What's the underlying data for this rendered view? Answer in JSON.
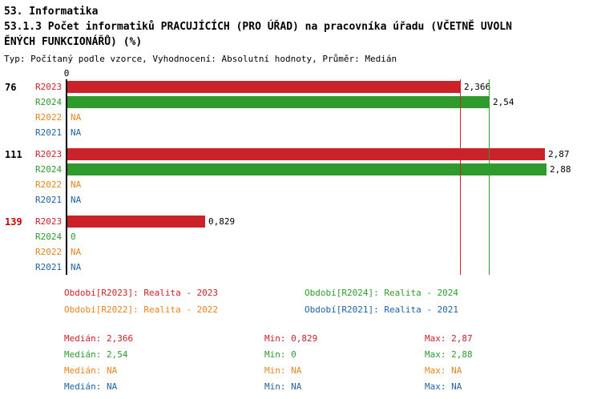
{
  "colors": {
    "R2023": "#cb2128",
    "R2024": "#2e9b2c",
    "R2022": "#e8831d",
    "R2021": "#1e62a5",
    "group_default": "#000000",
    "group_alert": "#cc0000",
    "axis": "#000000",
    "value_label": "#000000",
    "background": "#ffffff"
  },
  "header": {
    "line1": "53. Informatika",
    "line2a": "53.1.3 Počet informatiků PRACUJÍCÍCH (PRO ÚŘAD) na pracovníka úřadu (VČETNĚ UVOLN",
    "line2b": "ĚNÝCH FUNKCIONÁŘŮ) (%)",
    "meta": "Typ: Počítaný podle vzorce, Vyhodnocení: Absolutní hodnoty, Průměr: Medián"
  },
  "chart_data": {
    "type": "bar",
    "orientation": "horizontal",
    "x_origin_label": "0",
    "xlim": [
      0,
      3.2
    ],
    "grid": false,
    "series_order": [
      "R2023",
      "R2024",
      "R2022",
      "R2021"
    ],
    "groups": [
      {
        "label": "76",
        "alert": false,
        "rows": [
          {
            "series": "R2023",
            "value": 2.366,
            "value_label": "2,366"
          },
          {
            "series": "R2024",
            "value": 2.54,
            "value_label": "2,54"
          },
          {
            "series": "R2022",
            "value": null,
            "value_label": "NA"
          },
          {
            "series": "R2021",
            "value": null,
            "value_label": "NA"
          }
        ]
      },
      {
        "label": "111",
        "alert": false,
        "rows": [
          {
            "series": "R2023",
            "value": 2.87,
            "value_label": "2,87"
          },
          {
            "series": "R2024",
            "value": 2.88,
            "value_label": "2,88"
          },
          {
            "series": "R2022",
            "value": null,
            "value_label": "NA"
          },
          {
            "series": "R2021",
            "value": null,
            "value_label": "NA"
          }
        ]
      },
      {
        "label": "139",
        "alert": true,
        "rows": [
          {
            "series": "R2023",
            "value": 0.829,
            "value_label": "0,829"
          },
          {
            "series": "R2024",
            "value": 0,
            "value_label": "0"
          },
          {
            "series": "R2022",
            "value": null,
            "value_label": "NA"
          },
          {
            "series": "R2021",
            "value": null,
            "value_label": "NA"
          }
        ]
      }
    ],
    "reference_lines": [
      {
        "series": "R2023",
        "value": 2.366,
        "meaning": "median R2023"
      },
      {
        "series": "R2024",
        "value": 2.54,
        "meaning": "median R2024"
      }
    ]
  },
  "legend": {
    "items": [
      {
        "series": "R2023",
        "label": "Období[R2023]: Realita - 2023"
      },
      {
        "series": "R2024",
        "label": "Období[R2024]: Realita - 2024"
      },
      {
        "series": "R2022",
        "label": "Období[R2022]: Realita - 2022"
      },
      {
        "series": "R2021",
        "label": "Období[R2021]: Realita - 2021"
      }
    ]
  },
  "stats": {
    "rows": [
      {
        "series": "R2023",
        "median": "Medián: 2,366",
        "min": "Min: 0,829",
        "max": "Max: 2,87"
      },
      {
        "series": "R2024",
        "median": "Medián: 2,54",
        "min": "Min: 0",
        "max": "Max: 2,88"
      },
      {
        "series": "R2022",
        "median": "Medián: NA",
        "min": "Min: NA",
        "max": "Max: NA"
      },
      {
        "series": "R2021",
        "median": "Medián: NA",
        "min": "Min: NA",
        "max": "Max: NA"
      }
    ]
  }
}
